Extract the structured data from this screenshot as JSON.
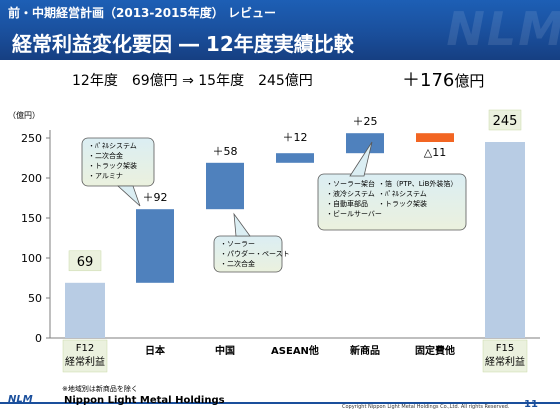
{
  "header": {
    "subtitle": "前・中期経営計画（2013-2015年度） レビュー",
    "title": "経常利益変化要因 ― 12年度実績比較",
    "watermark": "NLM"
  },
  "summary": {
    "text": "12年度　69億円 ⇒ 15年度　245億円",
    "diff": "＋176",
    "diff_unit": "億円"
  },
  "colors": {
    "header": "#1a4f9c",
    "bar_total": "#b8cce4",
    "bar_increase": "#4f81bd",
    "bar_decrease": "#f26522",
    "label_box_start": "#dbeef3",
    "label_box_end": "#ebf1de"
  },
  "chart_data": {
    "type": "bar",
    "subtype": "waterfall",
    "categories": [
      "F12\n経常利益",
      "日本",
      "中国",
      "ASEAN他",
      "新商品",
      "固定費他",
      "F15\n経常利益"
    ],
    "start": [
      0,
      69,
      161,
      219,
      231,
      256,
      0
    ],
    "values": [
      69,
      92,
      58,
      12,
      25,
      -11,
      245
    ],
    "value_labels": [
      "69",
      "＋92",
      "＋58",
      "＋12",
      "＋25",
      "△11",
      "245"
    ],
    "ylabel": "（億円）",
    "ylim": [
      0,
      250
    ],
    "yticks": [
      0,
      50,
      100,
      150,
      200,
      250
    ],
    "grid": false,
    "legend": "none",
    "annotations": [
      {
        "target": "日本",
        "lines": [
          "・ﾊﾟﾈﾙシステム",
          "・二次合金",
          "・トラック架装",
          "・アルミナ"
        ]
      },
      {
        "target": "中国",
        "lines": [
          "・ソーラー",
          "・パウダー・ペースト",
          "・二次合金"
        ]
      },
      {
        "target": "新商品",
        "lines": [
          "・ソーラー架台",
          "・液冷システム",
          "・自動車部品",
          "・ビールサーバー"
        ]
      },
      {
        "target": "新商品",
        "lines": [
          "・箔（PTP、LiB外装箔）",
          "・ﾊﾟﾈﾙシステム",
          "・トラック架装"
        ]
      }
    ]
  },
  "footer": {
    "note": "※地域別は新商品を除く",
    "logo": "NLM",
    "company": "Nippon Light Metal Holdings",
    "copyright": "Copyright Nippon Light Metal Holdings Co.,Ltd. All rights Reserved.",
    "page_number": "11"
  }
}
